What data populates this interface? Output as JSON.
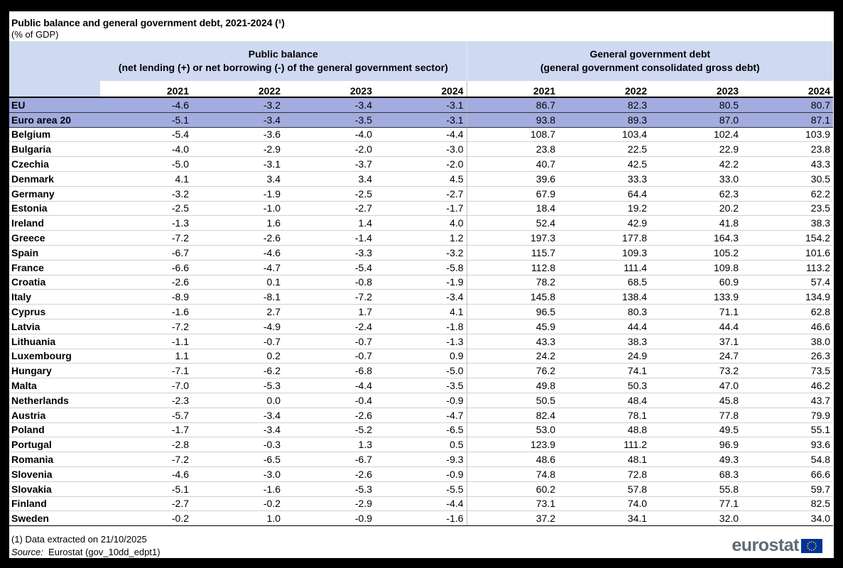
{
  "title": "Public balance and general government debt, 2021-2024 (¹)",
  "subtitle": "(% of GDP)",
  "groups": {
    "public_balance": {
      "line1": "Public balance",
      "line2": "(net lending (+) or net borrowing (-) of the general government sector)"
    },
    "debt": {
      "line1": "General government debt",
      "line2": "(general government consolidated gross debt)"
    }
  },
  "years": [
    "2021",
    "2022",
    "2023",
    "2024"
  ],
  "rows": [
    {
      "name": "EU",
      "pb": [
        "-4.6",
        "-3.2",
        "-3.4",
        "-3.1"
      ],
      "debt": [
        "86.7",
        "82.3",
        "80.5",
        "80.7"
      ],
      "aggregate": true
    },
    {
      "name": "Euro area 20",
      "pb": [
        "-5.1",
        "-3.4",
        "-3.5",
        "-3.1"
      ],
      "debt": [
        "93.8",
        "89.3",
        "87.0",
        "87.1"
      ],
      "aggregate": true
    },
    {
      "name": "Belgium",
      "pb": [
        "-5.4",
        "-3.6",
        "-4.0",
        "-4.4"
      ],
      "debt": [
        "108.7",
        "103.4",
        "102.4",
        "103.9"
      ]
    },
    {
      "name": "Bulgaria",
      "pb": [
        "-4.0",
        "-2.9",
        "-2.0",
        "-3.0"
      ],
      "debt": [
        "23.8",
        "22.5",
        "22.9",
        "23.8"
      ]
    },
    {
      "name": "Czechia",
      "pb": [
        "-5.0",
        "-3.1",
        "-3.7",
        "-2.0"
      ],
      "debt": [
        "40.7",
        "42.5",
        "42.2",
        "43.3"
      ]
    },
    {
      "name": "Denmark",
      "pb": [
        "4.1",
        "3.4",
        "3.4",
        "4.5"
      ],
      "debt": [
        "39.6",
        "33.3",
        "33.0",
        "30.5"
      ]
    },
    {
      "name": "Germany",
      "pb": [
        "-3.2",
        "-1.9",
        "-2.5",
        "-2.7"
      ],
      "debt": [
        "67.9",
        "64.4",
        "62.3",
        "62.2"
      ]
    },
    {
      "name": "Estonia",
      "pb": [
        "-2.5",
        "-1.0",
        "-2.7",
        "-1.7"
      ],
      "debt": [
        "18.4",
        "19.2",
        "20.2",
        "23.5"
      ]
    },
    {
      "name": "Ireland",
      "pb": [
        "-1.3",
        "1.6",
        "1.4",
        "4.0"
      ],
      "debt": [
        "52.4",
        "42.9",
        "41.8",
        "38.3"
      ]
    },
    {
      "name": "Greece",
      "pb": [
        "-7.2",
        "-2.6",
        "-1.4",
        "1.2"
      ],
      "debt": [
        "197.3",
        "177.8",
        "164.3",
        "154.2"
      ]
    },
    {
      "name": "Spain",
      "pb": [
        "-6.7",
        "-4.6",
        "-3.3",
        "-3.2"
      ],
      "debt": [
        "115.7",
        "109.3",
        "105.2",
        "101.6"
      ]
    },
    {
      "name": "France",
      "pb": [
        "-6.6",
        "-4.7",
        "-5.4",
        "-5.8"
      ],
      "debt": [
        "112.8",
        "111.4",
        "109.8",
        "113.2"
      ]
    },
    {
      "name": "Croatia",
      "pb": [
        "-2.6",
        "0.1",
        "-0.8",
        "-1.9"
      ],
      "debt": [
        "78.2",
        "68.5",
        "60.9",
        "57.4"
      ]
    },
    {
      "name": "Italy",
      "pb": [
        "-8.9",
        "-8.1",
        "-7.2",
        "-3.4"
      ],
      "debt": [
        "145.8",
        "138.4",
        "133.9",
        "134.9"
      ]
    },
    {
      "name": "Cyprus",
      "pb": [
        "-1.6",
        "2.7",
        "1.7",
        "4.1"
      ],
      "debt": [
        "96.5",
        "80.3",
        "71.1",
        "62.8"
      ]
    },
    {
      "name": "Latvia",
      "pb": [
        "-7.2",
        "-4.9",
        "-2.4",
        "-1.8"
      ],
      "debt": [
        "45.9",
        "44.4",
        "44.4",
        "46.6"
      ]
    },
    {
      "name": "Lithuania",
      "pb": [
        "-1.1",
        "-0.7",
        "-0.7",
        "-1.3"
      ],
      "debt": [
        "43.3",
        "38.3",
        "37.1",
        "38.0"
      ]
    },
    {
      "name": "Luxembourg",
      "pb": [
        "1.1",
        "0.2",
        "-0.7",
        "0.9"
      ],
      "debt": [
        "24.2",
        "24.9",
        "24.7",
        "26.3"
      ]
    },
    {
      "name": "Hungary",
      "pb": [
        "-7.1",
        "-6.2",
        "-6.8",
        "-5.0"
      ],
      "debt": [
        "76.2",
        "74.1",
        "73.2",
        "73.5"
      ]
    },
    {
      "name": "Malta",
      "pb": [
        "-7.0",
        "-5.3",
        "-4.4",
        "-3.5"
      ],
      "debt": [
        "49.8",
        "50.3",
        "47.0",
        "46.2"
      ]
    },
    {
      "name": "Netherlands",
      "pb": [
        "-2.3",
        "0.0",
        "-0.4",
        "-0.9"
      ],
      "debt": [
        "50.5",
        "48.4",
        "45.8",
        "43.7"
      ]
    },
    {
      "name": "Austria",
      "pb": [
        "-5.7",
        "-3.4",
        "-2.6",
        "-4.7"
      ],
      "debt": [
        "82.4",
        "78.1",
        "77.8",
        "79.9"
      ]
    },
    {
      "name": "Poland",
      "pb": [
        "-1.7",
        "-3.4",
        "-5.2",
        "-6.5"
      ],
      "debt": [
        "53.0",
        "48.8",
        "49.5",
        "55.1"
      ]
    },
    {
      "name": "Portugal",
      "pb": [
        "-2.8",
        "-0.3",
        "1.3",
        "0.5"
      ],
      "debt": [
        "123.9",
        "111.2",
        "96.9",
        "93.6"
      ]
    },
    {
      "name": "Romania",
      "pb": [
        "-7.2",
        "-6.5",
        "-6.7",
        "-9.3"
      ],
      "debt": [
        "48.6",
        "48.1",
        "49.3",
        "54.8"
      ]
    },
    {
      "name": "Slovenia",
      "pb": [
        "-4.6",
        "-3.0",
        "-2.6",
        "-0.9"
      ],
      "debt": [
        "74.8",
        "72.8",
        "68.3",
        "66.6"
      ]
    },
    {
      "name": "Slovakia",
      "pb": [
        "-5.1",
        "-1.6",
        "-5.3",
        "-5.5"
      ],
      "debt": [
        "60.2",
        "57.8",
        "55.8",
        "59.7"
      ]
    },
    {
      "name": "Finland",
      "pb": [
        "-2.7",
        "-0.2",
        "-2.9",
        "-4.4"
      ],
      "debt": [
        "73.1",
        "74.0",
        "77.1",
        "82.5"
      ]
    },
    {
      "name": "Sweden",
      "pb": [
        "-0.2",
        "1.0",
        "-0.9",
        "-1.6"
      ],
      "debt": [
        "37.2",
        "34.1",
        "32.0",
        "34.0"
      ]
    }
  ],
  "footnote": "(1) Data extracted on 21/10/2025",
  "source": {
    "label": "Source:",
    "text": "Eurostat (gov_10dd_edpt1)"
  },
  "logo": {
    "text": "eurostat",
    "icon": "eu-flag-icon",
    "flag_color": "#003399",
    "star_color": "#ffcc00"
  }
}
